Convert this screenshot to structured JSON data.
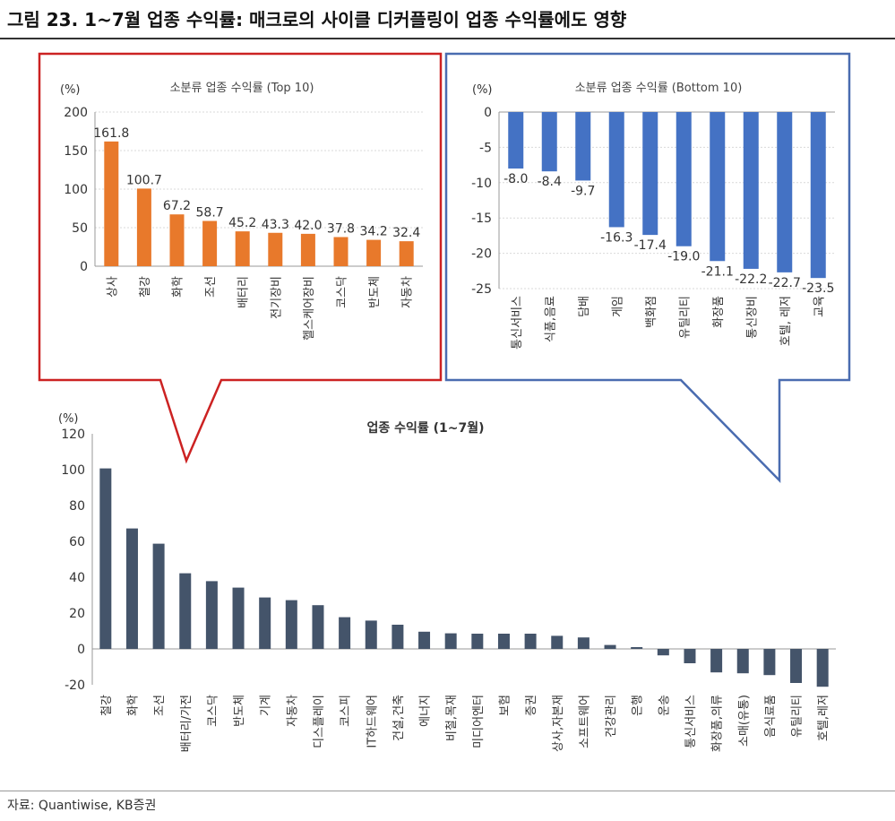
{
  "figure": {
    "title": "그림 23. 1~7월 업종 수익률: 매크로의 사이클 디커플링이 업종 수익률에도 영향",
    "source": "자료: Quantiwise, KB증권"
  },
  "colors": {
    "top_bar": "#E8792B",
    "bottom_bar": "#4472C4",
    "main_bar": "#44546A",
    "top_callout_border": "#CC2222",
    "bottom_callout_border": "#4A6CB0",
    "axis": "#999999",
    "grid": "#D9D9D9"
  },
  "chart_data": [
    {
      "id": "top10",
      "type": "bar",
      "title": "소분류 업종 수익률 (Top 10)",
      "unit_label": "(%)",
      "categories": [
        "상사",
        "철강",
        "화학",
        "조선",
        "배터리",
        "전기장비",
        "헬스케어장비",
        "코스닥",
        "반도체",
        "자동차"
      ],
      "values": [
        161.8,
        100.7,
        67.2,
        58.7,
        45.2,
        43.3,
        42.0,
        37.8,
        34.2,
        32.4
      ],
      "value_labels": [
        "161.8",
        "100.7",
        "67.2",
        "58.7",
        "45.2",
        "43.3",
        "42.0",
        "37.8",
        "34.2",
        "32.4"
      ],
      "ylim": [
        0,
        200
      ],
      "yticks": [
        0,
        50,
        100,
        150,
        200
      ],
      "grid": true
    },
    {
      "id": "bottom10",
      "type": "bar",
      "title": "소분류 업종 수익률 (Bottom 10)",
      "unit_label": "(%)",
      "categories": [
        "통신서비스",
        "식품,음료",
        "담배",
        "게임",
        "백화점",
        "유틸리티",
        "화장품",
        "통신장비",
        "호텔, 레저",
        "교육"
      ],
      "values": [
        -8.0,
        -8.4,
        -9.7,
        -16.3,
        -17.4,
        -19.0,
        -21.1,
        -22.2,
        -22.7,
        -23.5
      ],
      "value_labels": [
        "-8.0",
        "-8.4",
        "-9.7",
        "-16.3",
        "-17.4",
        "-19.0",
        "-21.1",
        "-22.2",
        "-22.7",
        "-23.5"
      ],
      "ylim": [
        -25,
        0
      ],
      "yticks": [
        0,
        -5,
        -10,
        -15,
        -20,
        -25
      ],
      "grid": true
    },
    {
      "id": "main",
      "type": "bar",
      "title": "업종 수익률 (1~7월)",
      "unit_label": "(%)",
      "categories": [
        "철강",
        "화학",
        "조선",
        "배터리/가전",
        "코스닥",
        "반도체",
        "기계",
        "자동차",
        "디스플레이",
        "코스피",
        "IT하드웨어",
        "건설,건축",
        "에너지",
        "비철,목재",
        "미디어엔터",
        "보험",
        "증권",
        "상사,자본재",
        "소프트웨어",
        "건강관리",
        "은행",
        "운송",
        "통신서비스",
        "화장품,의류",
        "소매(유통)",
        "음식료품",
        "유틸리티",
        "호텔,레저"
      ],
      "values": [
        100.7,
        67.2,
        58.7,
        42.2,
        37.8,
        34.2,
        28.7,
        27.2,
        24.4,
        17.7,
        15.8,
        13.5,
        9.6,
        8.7,
        8.5,
        8.5,
        8.5,
        7.3,
        6.4,
        2.2,
        1.0,
        -3.6,
        -8.0,
        -13.1,
        -13.6,
        -14.6,
        -19.0,
        -21.1
      ],
      "ylim": [
        -20,
        120
      ],
      "yticks": [
        120,
        100,
        80,
        60,
        40,
        20,
        0,
        -20
      ],
      "grid": false
    }
  ]
}
